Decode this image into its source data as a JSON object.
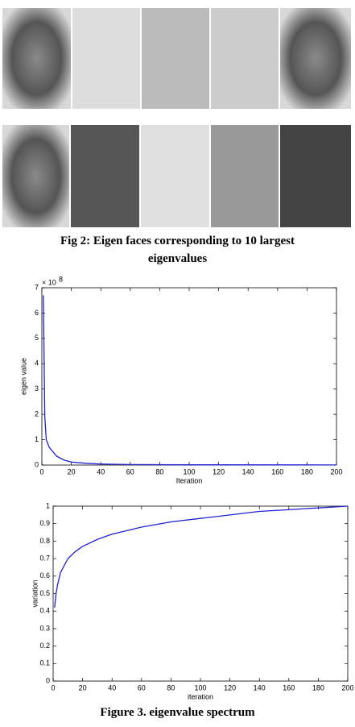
{
  "fig2": {
    "caption": "Fig 2: Eigen faces corresponding to 10 largest eigenvalues"
  },
  "chart_data": [
    {
      "type": "line",
      "xlabel": "Iteration",
      "ylabel": "eigen value",
      "y_multiplier": {
        "base": "× 10",
        "exponent": "8"
      },
      "xlim": [
        0,
        200
      ],
      "xticks": [
        0,
        20,
        40,
        60,
        80,
        100,
        120,
        140,
        160,
        180,
        200
      ],
      "ylim": [
        0,
        7
      ],
      "yticks": [
        0,
        1,
        2,
        3,
        4,
        5,
        6,
        7
      ],
      "grid": false,
      "series": [
        {
          "color": "#2020d0",
          "x": [
            1,
            2,
            3,
            5,
            10,
            15,
            20,
            30,
            40,
            60,
            100,
            200
          ],
          "values": [
            6.7,
            1.9,
            1.0,
            0.7,
            0.35,
            0.2,
            0.12,
            0.07,
            0.04,
            0.02,
            0.01,
            0.005
          ]
        }
      ]
    },
    {
      "type": "line",
      "xlabel": "iteration",
      "ylabel": "variation",
      "xlim": [
        0,
        200
      ],
      "xticks": [
        0,
        20,
        40,
        60,
        80,
        100,
        120,
        140,
        160,
        180,
        200
      ],
      "ylim": [
        0,
        1
      ],
      "yticks": [
        0,
        0.1,
        0.2,
        0.3,
        0.4,
        0.5,
        0.6,
        0.7,
        0.8,
        0.9,
        1
      ],
      "grid": false,
      "series": [
        {
          "color": "#2020d0",
          "x": [
            1,
            2,
            3,
            5,
            10,
            15,
            20,
            30,
            40,
            60,
            80,
            100,
            120,
            140,
            160,
            180,
            200
          ],
          "values": [
            0.42,
            0.5,
            0.55,
            0.62,
            0.7,
            0.74,
            0.77,
            0.81,
            0.84,
            0.88,
            0.91,
            0.93,
            0.95,
            0.97,
            0.98,
            0.99,
            1.0
          ]
        }
      ]
    }
  ],
  "fig3": {
    "caption": "Figure 3. eigenvalue spectrum"
  }
}
